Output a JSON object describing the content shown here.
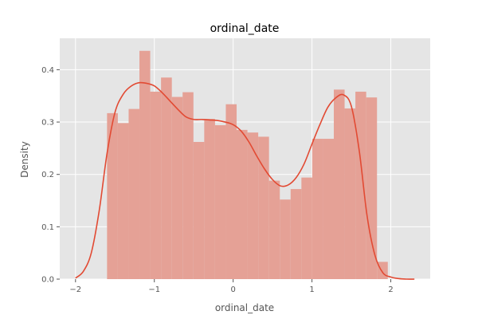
{
  "chart_data": {
    "type": "bar",
    "subtype": "histogram-with-kde",
    "title": "ordinal_date",
    "xlabel": "ordinal_date",
    "ylabel": "Density",
    "xlim": [
      -2.2,
      2.5
    ],
    "ylim": [
      0,
      0.46
    ],
    "grid": true,
    "x_ticks": [
      -2,
      -1,
      0,
      1,
      2
    ],
    "x_tick_labels": [
      "−2",
      "−1",
      "0",
      "1",
      "2"
    ],
    "y_ticks": [
      0.0,
      0.1,
      0.2,
      0.3,
      0.4
    ],
    "y_tick_labels": [
      "0.0",
      "0.1",
      "0.2",
      "0.3",
      "0.4"
    ],
    "bin_start": -1.6,
    "bin_width": 0.137,
    "values": [
      0.317,
      0.298,
      0.325,
      0.436,
      0.358,
      0.385,
      0.348,
      0.357,
      0.262,
      0.306,
      0.294,
      0.334,
      0.285,
      0.28,
      0.272,
      0.188,
      0.152,
      0.172,
      0.194,
      0.268,
      0.268,
      0.362,
      0.326,
      0.358,
      0.347,
      0.033
    ],
    "kde": {
      "x": [
        -2.0,
        -1.9,
        -1.8,
        -1.7,
        -1.6,
        -1.5,
        -1.4,
        -1.3,
        -1.2,
        -1.1,
        -1.0,
        -0.9,
        -0.8,
        -0.7,
        -0.6,
        -0.5,
        -0.4,
        -0.3,
        -0.2,
        -0.1,
        0.0,
        0.1,
        0.2,
        0.3,
        0.4,
        0.5,
        0.6,
        0.7,
        0.8,
        0.9,
        1.0,
        1.1,
        1.2,
        1.3,
        1.4,
        1.5,
        1.6,
        1.7,
        1.8,
        1.9,
        2.0,
        2.1,
        2.2,
        2.3
      ],
      "y": [
        0.002,
        0.015,
        0.05,
        0.13,
        0.24,
        0.318,
        0.352,
        0.368,
        0.375,
        0.374,
        0.369,
        0.356,
        0.34,
        0.324,
        0.31,
        0.305,
        0.305,
        0.304,
        0.303,
        0.3,
        0.295,
        0.283,
        0.262,
        0.235,
        0.21,
        0.19,
        0.178,
        0.18,
        0.194,
        0.22,
        0.258,
        0.295,
        0.328,
        0.346,
        0.352,
        0.33,
        0.245,
        0.12,
        0.045,
        0.012,
        0.004,
        0.001,
        0.0,
        0.0
      ]
    },
    "colors": {
      "background": "#e5e5e5",
      "bars": "#e5a196",
      "kde_line": "#e24a33",
      "grid": "#ffffff",
      "text": "#555555"
    }
  }
}
